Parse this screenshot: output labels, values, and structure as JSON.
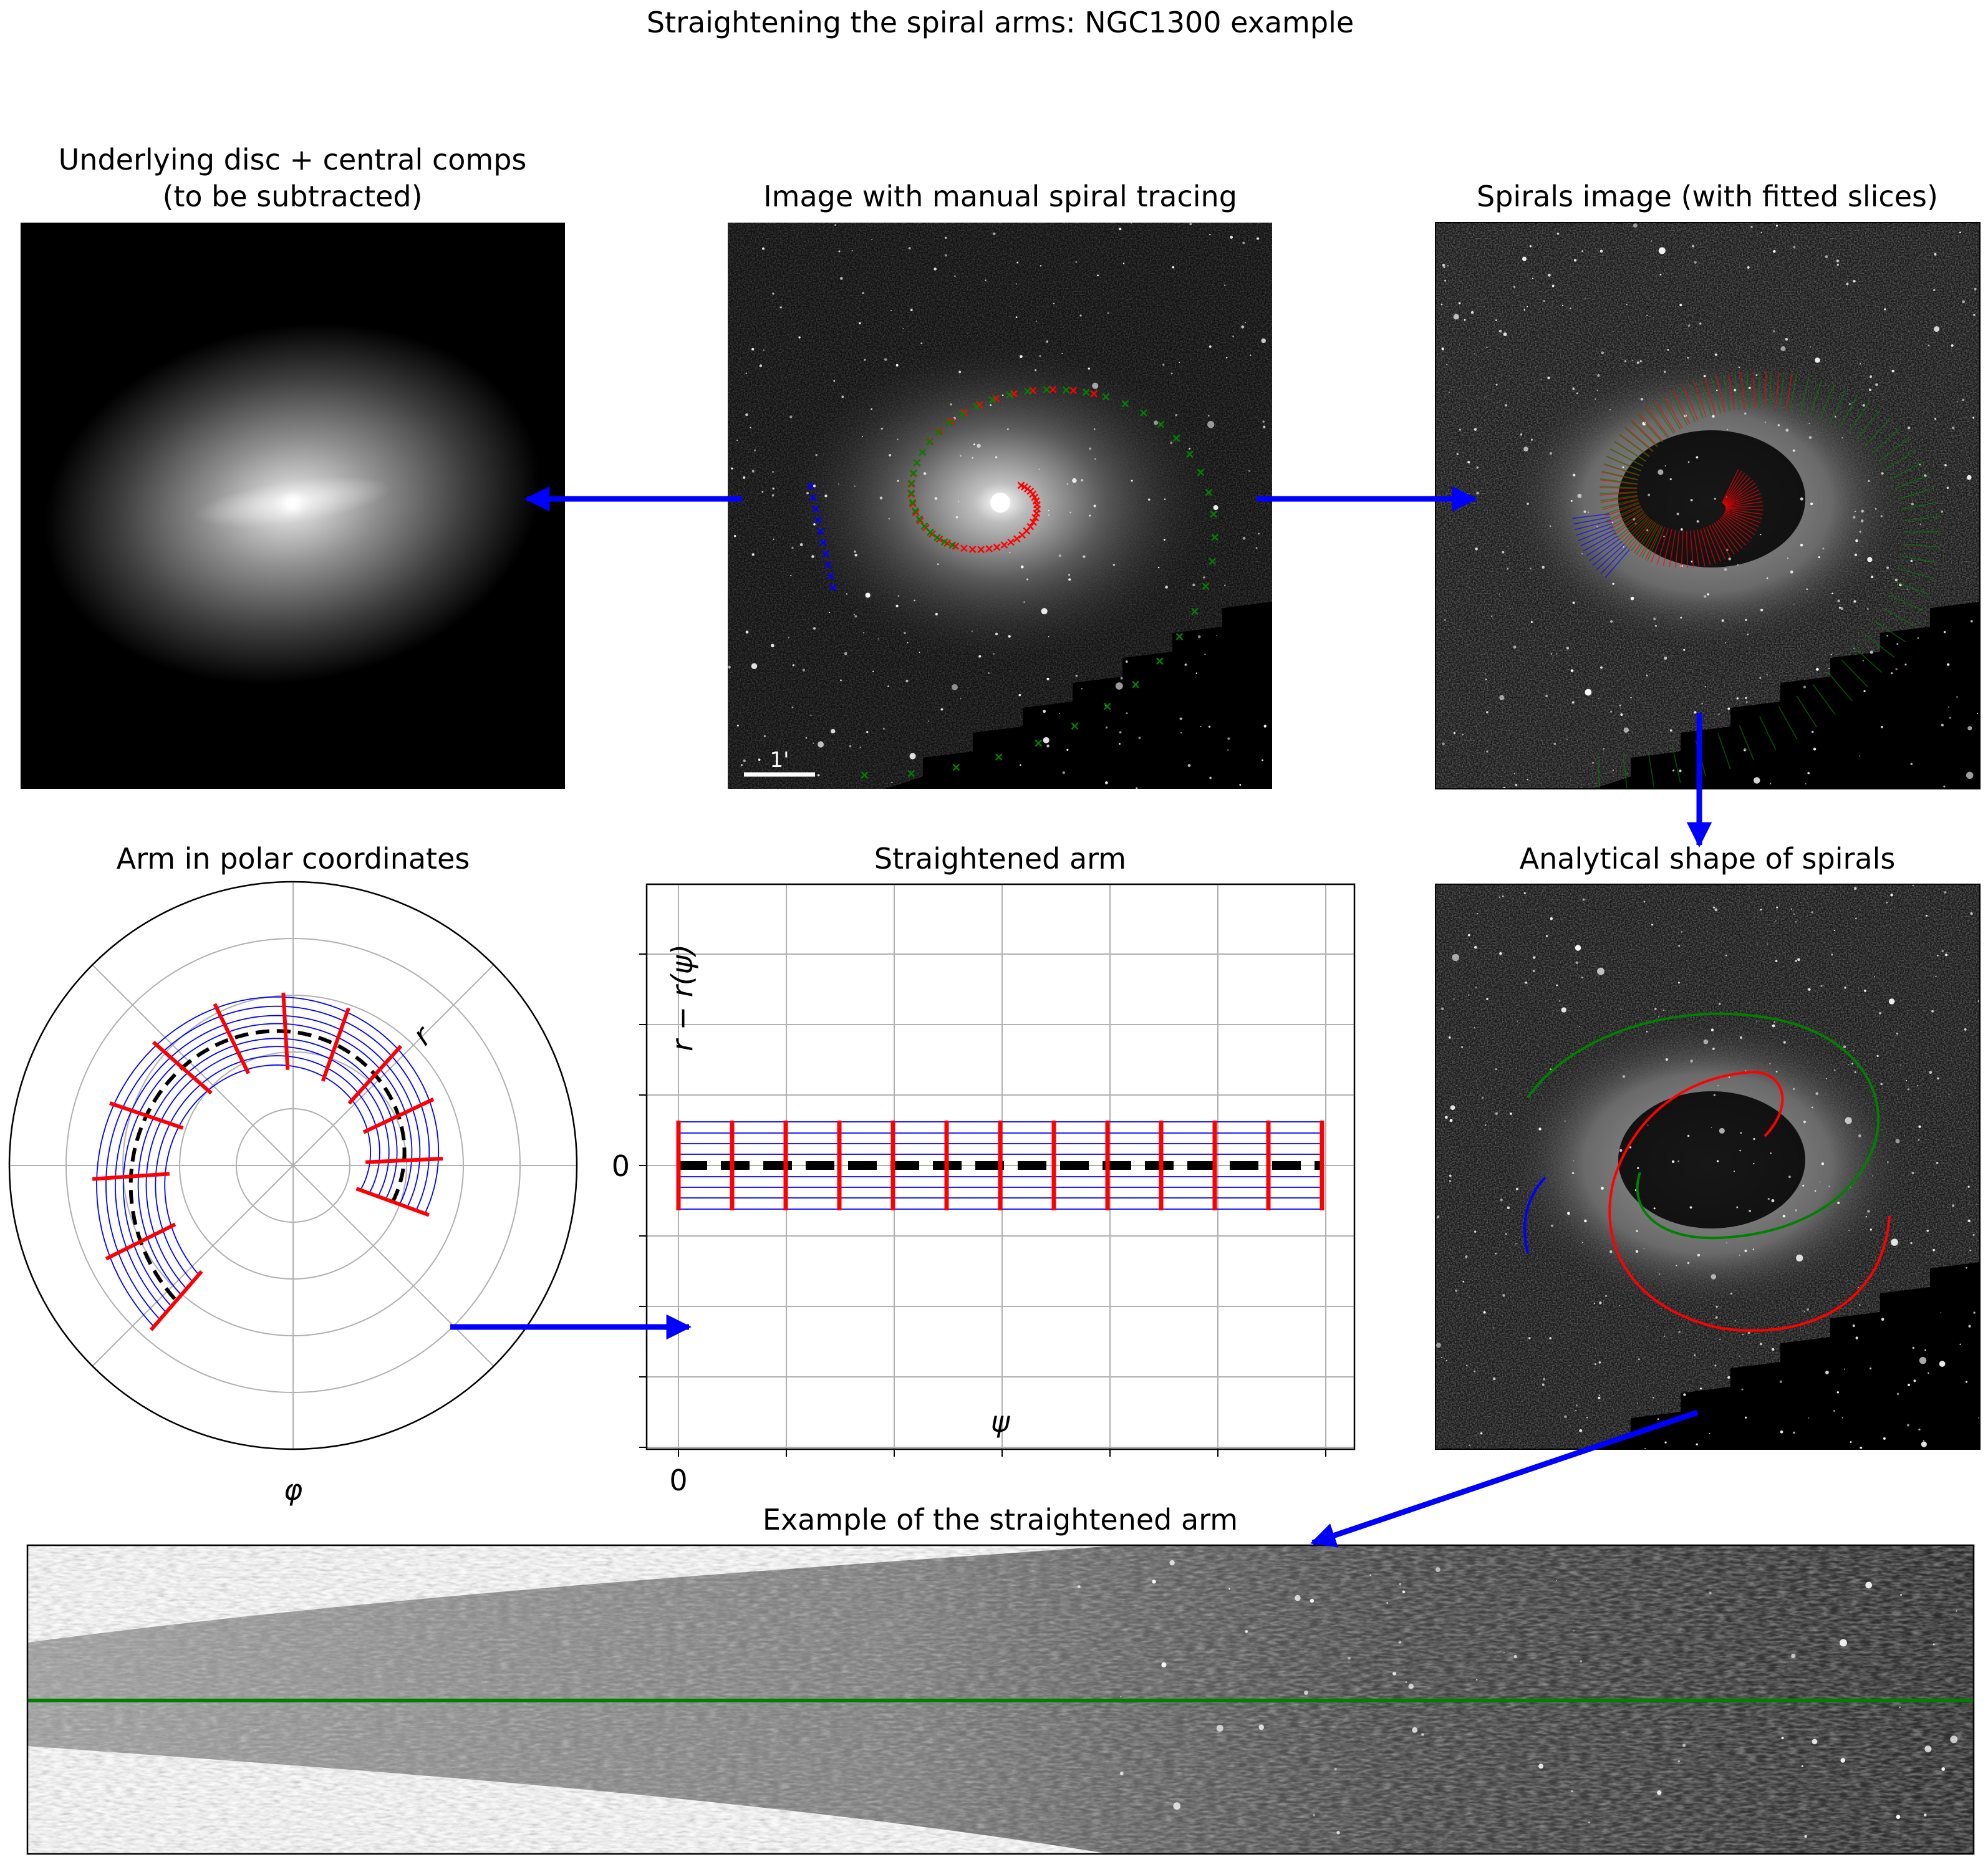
{
  "figure": {
    "title": "Straightening the spiral arms: NGC1300 example"
  },
  "panels": {
    "disc": {
      "title_line1": "Underlying disc + central comps",
      "title_line2": "(to be subtracted)"
    },
    "manual": {
      "title": "Image with manual spiral tracing",
      "scalebar_label": "1'"
    },
    "fitted": {
      "title": "Spirals image (with fitted slices)"
    },
    "polar": {
      "title": "Arm in polar coordinates",
      "r_label": "r",
      "phi_label": "φ"
    },
    "straightened": {
      "title": "Straightened arm",
      "ylabel": "r − r(ψ)",
      "xlabel": "ψ",
      "ytick_zero": "0",
      "xtick_zero": "0"
    },
    "analytical": {
      "title": "Analytical shape of spirals"
    },
    "example": {
      "title": "Example of the straightened arm"
    }
  },
  "colors": {
    "arrow": "#0000ff",
    "arm_red": "#ff0000",
    "arm_green": "#008000",
    "arm_blue": "#0000ff",
    "slice_red": "#ff0000",
    "guide_blue": "#0000ff",
    "ridge_black": "#000000"
  }
}
